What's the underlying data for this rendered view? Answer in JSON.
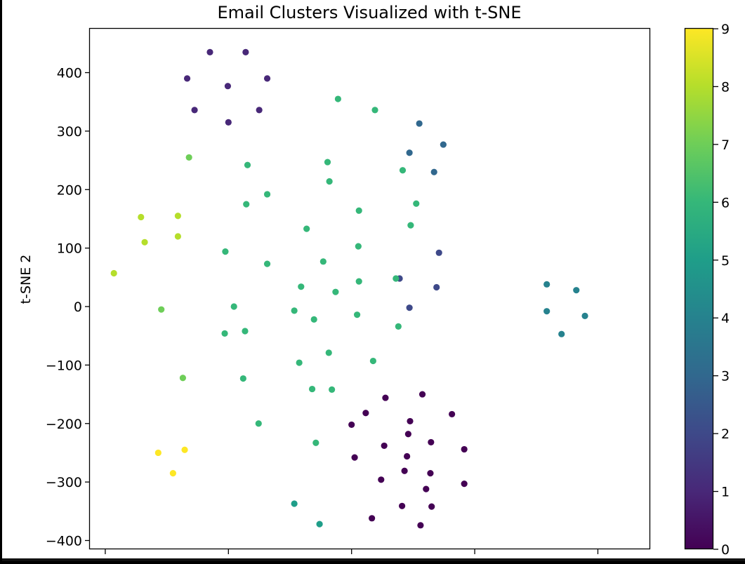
{
  "chart_data": {
    "type": "scatter",
    "title": "Email Clusters Visualized with t-SNE",
    "xlabel": "",
    "ylabel": "t-SNE 2",
    "xlim": [
      -190,
      720
    ],
    "ylim": [
      -415,
      475
    ],
    "yticks": [
      400,
      300,
      200,
      100,
      0,
      -100,
      -200,
      -300,
      -400
    ],
    "ytick_labels": [
      "400",
      "300",
      "200",
      "100",
      "0",
      "−100",
      "−200",
      "−300",
      "−400"
    ],
    "xticks": [
      -165,
      35,
      235,
      435,
      635
    ],
    "colorbar": {
      "colormap": "viridis",
      "min": 0,
      "max": 9,
      "ticks": [
        0,
        1,
        2,
        3,
        4,
        5,
        6,
        7,
        8,
        9
      ],
      "tick_labels": [
        "0",
        "1",
        "2",
        "3",
        "4",
        "5",
        "6",
        "7",
        "8",
        "9"
      ]
    },
    "grid": false,
    "legend": "none",
    "points": [
      {
        "x": 235,
        "y": -202,
        "c": 0
      },
      {
        "x": 258,
        "y": -182,
        "c": 0
      },
      {
        "x": 290,
        "y": -156,
        "c": 0
      },
      {
        "x": 350,
        "y": -150,
        "c": 0
      },
      {
        "x": 398,
        "y": -184,
        "c": 0
      },
      {
        "x": 330,
        "y": -196,
        "c": 0
      },
      {
        "x": 240,
        "y": -258,
        "c": 0
      },
      {
        "x": 288,
        "y": -238,
        "c": 0
      },
      {
        "x": 327,
        "y": -218,
        "c": 0
      },
      {
        "x": 364,
        "y": -232,
        "c": 0
      },
      {
        "x": 418,
        "y": -244,
        "c": 0
      },
      {
        "x": 325,
        "y": -256,
        "c": 0
      },
      {
        "x": 283,
        "y": -296,
        "c": 0
      },
      {
        "x": 321,
        "y": -281,
        "c": 0
      },
      {
        "x": 363,
        "y": -285,
        "c": 0
      },
      {
        "x": 418,
        "y": -303,
        "c": 0
      },
      {
        "x": 356,
        "y": -312,
        "c": 0
      },
      {
        "x": 317,
        "y": -341,
        "c": 0
      },
      {
        "x": 365,
        "y": -342,
        "c": 0
      },
      {
        "x": 268,
        "y": -362,
        "c": 0
      },
      {
        "x": 347,
        "y": -374,
        "c": 0
      },
      {
        "x": 5,
        "y": 435,
        "c": 1
      },
      {
        "x": 63,
        "y": 435,
        "c": 1
      },
      {
        "x": -32,
        "y": 390,
        "c": 1
      },
      {
        "x": 34,
        "y": 377,
        "c": 1
      },
      {
        "x": 98,
        "y": 390,
        "c": 1
      },
      {
        "x": -20,
        "y": 336,
        "c": 1
      },
      {
        "x": 85,
        "y": 336,
        "c": 1
      },
      {
        "x": 35,
        "y": 315,
        "c": 1
      },
      {
        "x": 313,
        "y": 48,
        "c": 2
      },
      {
        "x": 329,
        "y": -2,
        "c": 2
      },
      {
        "x": 373,
        "y": 33,
        "c": 2
      },
      {
        "x": 377,
        "y": 92,
        "c": 2
      },
      {
        "x": 345,
        "y": 313,
        "c": 3
      },
      {
        "x": 329,
        "y": 263,
        "c": 3
      },
      {
        "x": 384,
        "y": 277,
        "c": 3
      },
      {
        "x": 369,
        "y": 230,
        "c": 3
      },
      {
        "x": 552,
        "y": 38,
        "c": 4
      },
      {
        "x": 552,
        "y": -8,
        "c": 4
      },
      {
        "x": 600,
        "y": 28,
        "c": 4
      },
      {
        "x": 614,
        "y": -16,
        "c": 4
      },
      {
        "x": 576,
        "y": -47,
        "c": 4
      },
      {
        "x": 142,
        "y": -337,
        "c": 5
      },
      {
        "x": 183,
        "y": -372,
        "c": 5
      },
      {
        "x": 213,
        "y": 355,
        "c": 6
      },
      {
        "x": 273,
        "y": 336,
        "c": 6
      },
      {
        "x": 196,
        "y": 247,
        "c": 6
      },
      {
        "x": 66,
        "y": 242,
        "c": 6
      },
      {
        "x": 318,
        "y": 233,
        "c": 6
      },
      {
        "x": 199,
        "y": 214,
        "c": 6
      },
      {
        "x": 98,
        "y": 192,
        "c": 6
      },
      {
        "x": 64,
        "y": 175,
        "c": 6
      },
      {
        "x": 247,
        "y": 164,
        "c": 6
      },
      {
        "x": 340,
        "y": 176,
        "c": 6
      },
      {
        "x": 331,
        "y": 139,
        "c": 6
      },
      {
        "x": 162,
        "y": 133,
        "c": 6
      },
      {
        "x": 30,
        "y": 94,
        "c": 6
      },
      {
        "x": 246,
        "y": 103,
        "c": 6
      },
      {
        "x": 189,
        "y": 77,
        "c": 6
      },
      {
        "x": 98,
        "y": 73,
        "c": 6
      },
      {
        "x": 307,
        "y": 48,
        "c": 6
      },
      {
        "x": 247,
        "y": 43,
        "c": 6
      },
      {
        "x": 153,
        "y": 34,
        "c": 6
      },
      {
        "x": 209,
        "y": 25,
        "c": 6
      },
      {
        "x": 44,
        "y": 0,
        "c": 6
      },
      {
        "x": 142,
        "y": -7,
        "c": 6
      },
      {
        "x": 244,
        "y": -14,
        "c": 6
      },
      {
        "x": 174,
        "y": -22,
        "c": 6
      },
      {
        "x": 311,
        "y": -34,
        "c": 6
      },
      {
        "x": 62,
        "y": -42,
        "c": 6
      },
      {
        "x": 29,
        "y": -46,
        "c": 6
      },
      {
        "x": 198,
        "y": -79,
        "c": 6
      },
      {
        "x": 150,
        "y": -96,
        "c": 6
      },
      {
        "x": 270,
        "y": -93,
        "c": 6
      },
      {
        "x": 59,
        "y": -123,
        "c": 6
      },
      {
        "x": 171,
        "y": -141,
        "c": 6
      },
      {
        "x": 203,
        "y": -142,
        "c": 6
      },
      {
        "x": 84,
        "y": -200,
        "c": 6
      },
      {
        "x": 177,
        "y": -233,
        "c": 6
      },
      {
        "x": -29,
        "y": 255,
        "c": 7
      },
      {
        "x": -74,
        "y": -5,
        "c": 7
      },
      {
        "x": -39,
        "y": -122,
        "c": 7
      },
      {
        "x": -107,
        "y": 153,
        "c": 8
      },
      {
        "x": -47,
        "y": 155,
        "c": 8
      },
      {
        "x": -47,
        "y": 120,
        "c": 8
      },
      {
        "x": -101,
        "y": 110,
        "c": 8
      },
      {
        "x": -151,
        "y": 57,
        "c": 8
      },
      {
        "x": -79,
        "y": -250,
        "c": 9
      },
      {
        "x": -36,
        "y": -245,
        "c": 9
      },
      {
        "x": -55,
        "y": -285,
        "c": 9
      }
    ]
  }
}
